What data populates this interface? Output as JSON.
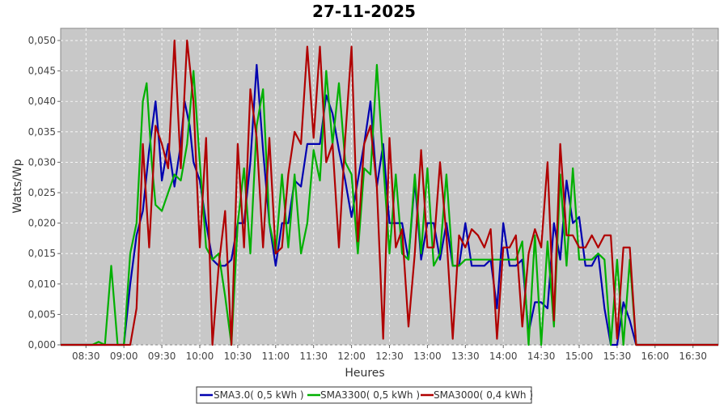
{
  "chart_data": {
    "type": "line",
    "title": "27-11-2025",
    "xlabel": "Heures",
    "ylabel": "Watts/Wp",
    "x_ticks": [
      "08:30",
      "09:00",
      "09:30",
      "10:00",
      "10:30",
      "11:00",
      "11:30",
      "12:00",
      "12:30",
      "13:00",
      "13:30",
      "14:00",
      "14:30",
      "15:00",
      "15:30",
      "16:00",
      "16:30"
    ],
    "y_ticks": [
      "0,000",
      "0,005",
      "0,010",
      "0,015",
      "0,020",
      "0,025",
      "0,030",
      "0,035",
      "0,040",
      "0,045",
      "0,050"
    ],
    "xlim": [
      "08:10",
      "16:50"
    ],
    "ylim": [
      0,
      0.052
    ],
    "grid": true,
    "legend_position": "bottom-center",
    "colors": {
      "plot_background": "#c8c8c8",
      "grid": "#ffffff"
    },
    "series": [
      {
        "name": "SMA3.0( 0,5 kWh )",
        "color": "#0000b0",
        "points": [
          [
            "08:10",
            0.0
          ],
          [
            "08:50",
            0.0
          ],
          [
            "09:00",
            0.0
          ],
          [
            "09:05",
            0.01
          ],
          [
            "09:10",
            0.018
          ],
          [
            "09:15",
            0.022
          ],
          [
            "09:20",
            0.032
          ],
          [
            "09:25",
            0.04
          ],
          [
            "09:28",
            0.033
          ],
          [
            "09:30",
            0.027
          ],
          [
            "09:35",
            0.033
          ],
          [
            "09:40",
            0.026
          ],
          [
            "09:45",
            0.033
          ],
          [
            "09:48",
            0.04
          ],
          [
            "09:52",
            0.036
          ],
          [
            "09:55",
            0.03
          ],
          [
            "10:00",
            0.027
          ],
          [
            "10:05",
            0.02
          ],
          [
            "10:10",
            0.014
          ],
          [
            "10:15",
            0.013
          ],
          [
            "10:20",
            0.013
          ],
          [
            "10:25",
            0.014
          ],
          [
            "10:30",
            0.02
          ],
          [
            "10:35",
            0.02
          ],
          [
            "10:40",
            0.03
          ],
          [
            "10:45",
            0.046
          ],
          [
            "10:50",
            0.032
          ],
          [
            "10:55",
            0.02
          ],
          [
            "11:00",
            0.013
          ],
          [
            "11:05",
            0.02
          ],
          [
            "11:10",
            0.02
          ],
          [
            "11:15",
            0.027
          ],
          [
            "11:20",
            0.026
          ],
          [
            "11:25",
            0.033
          ],
          [
            "11:30",
            0.033
          ],
          [
            "11:35",
            0.033
          ],
          [
            "11:40",
            0.041
          ],
          [
            "11:45",
            0.038
          ],
          [
            "11:50",
            0.032
          ],
          [
            "11:55",
            0.027
          ],
          [
            "12:00",
            0.021
          ],
          [
            "12:05",
            0.027
          ],
          [
            "12:10",
            0.033
          ],
          [
            "12:15",
            0.04
          ],
          [
            "12:20",
            0.026
          ],
          [
            "12:25",
            0.033
          ],
          [
            "12:30",
            0.02
          ],
          [
            "12:35",
            0.02
          ],
          [
            "12:40",
            0.02
          ],
          [
            "12:45",
            0.014
          ],
          [
            "12:50",
            0.027
          ],
          [
            "12:55",
            0.014
          ],
          [
            "13:00",
            0.02
          ],
          [
            "13:05",
            0.02
          ],
          [
            "13:10",
            0.014
          ],
          [
            "13:15",
            0.02
          ],
          [
            "13:20",
            0.013
          ],
          [
            "13:25",
            0.013
          ],
          [
            "13:30",
            0.02
          ],
          [
            "13:35",
            0.013
          ],
          [
            "13:40",
            0.013
          ],
          [
            "13:45",
            0.013
          ],
          [
            "13:50",
            0.014
          ],
          [
            "13:55",
            0.006
          ],
          [
            "14:00",
            0.02
          ],
          [
            "14:05",
            0.013
          ],
          [
            "14:10",
            0.013
          ],
          [
            "14:15",
            0.014
          ],
          [
            "14:20",
            0.002
          ],
          [
            "14:25",
            0.007
          ],
          [
            "14:30",
            0.007
          ],
          [
            "14:35",
            0.006
          ],
          [
            "14:40",
            0.02
          ],
          [
            "14:45",
            0.014
          ],
          [
            "14:50",
            0.027
          ],
          [
            "14:55",
            0.02
          ],
          [
            "15:00",
            0.021
          ],
          [
            "15:05",
            0.013
          ],
          [
            "15:10",
            0.013
          ],
          [
            "15:15",
            0.015
          ],
          [
            "15:20",
            0.006
          ],
          [
            "15:25",
            0.0
          ],
          [
            "15:30",
            0.0
          ],
          [
            "15:35",
            0.007
          ],
          [
            "15:40",
            0.004
          ],
          [
            "15:45",
            0.0
          ],
          [
            "16:50",
            0.0
          ]
        ]
      },
      {
        "name": "SMA3300( 0,5 kWh )",
        "color": "#00b000",
        "points": [
          [
            "08:10",
            0.0
          ],
          [
            "08:35",
            0.0
          ],
          [
            "08:40",
            0.0005
          ],
          [
            "08:45",
            0.0
          ],
          [
            "08:50",
            0.013
          ],
          [
            "08:55",
            0.0
          ],
          [
            "09:00",
            0.0
          ],
          [
            "09:05",
            0.015
          ],
          [
            "09:10",
            0.02
          ],
          [
            "09:15",
            0.04
          ],
          [
            "09:18",
            0.043
          ],
          [
            "09:22",
            0.03
          ],
          [
            "09:25",
            0.023
          ],
          [
            "09:30",
            0.022
          ],
          [
            "09:35",
            0.025
          ],
          [
            "09:40",
            0.028
          ],
          [
            "09:45",
            0.027
          ],
          [
            "09:50",
            0.033
          ],
          [
            "09:55",
            0.045
          ],
          [
            "10:00",
            0.03
          ],
          [
            "10:05",
            0.016
          ],
          [
            "10:10",
            0.014
          ],
          [
            "10:15",
            0.015
          ],
          [
            "10:20",
            0.008
          ],
          [
            "10:25",
            0.0
          ],
          [
            "10:30",
            0.02
          ],
          [
            "10:35",
            0.029
          ],
          [
            "10:40",
            0.015
          ],
          [
            "10:45",
            0.036
          ],
          [
            "10:50",
            0.042
          ],
          [
            "10:55",
            0.02
          ],
          [
            "11:00",
            0.015
          ],
          [
            "11:05",
            0.028
          ],
          [
            "11:10",
            0.016
          ],
          [
            "11:15",
            0.028
          ],
          [
            "11:20",
            0.015
          ],
          [
            "11:25",
            0.02
          ],
          [
            "11:30",
            0.032
          ],
          [
            "11:35",
            0.027
          ],
          [
            "11:40",
            0.045
          ],
          [
            "11:45",
            0.033
          ],
          [
            "11:50",
            0.043
          ],
          [
            "11:55",
            0.03
          ],
          [
            "12:00",
            0.028
          ],
          [
            "12:05",
            0.015
          ],
          [
            "12:10",
            0.029
          ],
          [
            "12:15",
            0.028
          ],
          [
            "12:20",
            0.046
          ],
          [
            "12:25",
            0.03
          ],
          [
            "12:30",
            0.015
          ],
          [
            "12:35",
            0.028
          ],
          [
            "12:40",
            0.015
          ],
          [
            "12:45",
            0.014
          ],
          [
            "12:50",
            0.028
          ],
          [
            "12:55",
            0.015
          ],
          [
            "13:00",
            0.029
          ],
          [
            "13:05",
            0.013
          ],
          [
            "13:10",
            0.015
          ],
          [
            "13:15",
            0.028
          ],
          [
            "13:20",
            0.013
          ],
          [
            "13:25",
            0.013
          ],
          [
            "13:30",
            0.014
          ],
          [
            "13:35",
            0.014
          ],
          [
            "13:40",
            0.014
          ],
          [
            "13:45",
            0.014
          ],
          [
            "13:50",
            0.014
          ],
          [
            "13:55",
            0.014
          ],
          [
            "14:00",
            0.014
          ],
          [
            "14:05",
            0.014
          ],
          [
            "14:10",
            0.014
          ],
          [
            "14:15",
            0.017
          ],
          [
            "14:20",
            0.0
          ],
          [
            "14:25",
            0.018
          ],
          [
            "14:30",
            0.0
          ],
          [
            "14:35",
            0.017
          ],
          [
            "14:40",
            0.003
          ],
          [
            "14:45",
            0.028
          ],
          [
            "14:50",
            0.013
          ],
          [
            "14:55",
            0.029
          ],
          [
            "15:00",
            0.014
          ],
          [
            "15:05",
            0.014
          ],
          [
            "15:10",
            0.014
          ],
          [
            "15:15",
            0.015
          ],
          [
            "15:20",
            0.014
          ],
          [
            "15:25",
            0.0
          ],
          [
            "15:30",
            0.014
          ],
          [
            "15:35",
            0.0
          ],
          [
            "15:40",
            0.014
          ],
          [
            "15:45",
            0.0
          ],
          [
            "16:50",
            0.0
          ]
        ]
      },
      {
        "name": "SMA3000( 0,4 kWh )",
        "color": "#b00000",
        "points": [
          [
            "08:10",
            0.0
          ],
          [
            "09:00",
            0.0
          ],
          [
            "09:05",
            0.0
          ],
          [
            "09:10",
            0.006
          ],
          [
            "09:15",
            0.033
          ],
          [
            "09:20",
            0.016
          ],
          [
            "09:25",
            0.036
          ],
          [
            "09:30",
            0.033
          ],
          [
            "09:35",
            0.029
          ],
          [
            "09:40",
            0.05
          ],
          [
            "09:45",
            0.029
          ],
          [
            "09:50",
            0.05
          ],
          [
            "09:55",
            0.04
          ],
          [
            "10:00",
            0.016
          ],
          [
            "10:05",
            0.034
          ],
          [
            "10:10",
            0.0
          ],
          [
            "10:15",
            0.013
          ],
          [
            "10:20",
            0.022
          ],
          [
            "10:25",
            0.0
          ],
          [
            "10:30",
            0.033
          ],
          [
            "10:35",
            0.016
          ],
          [
            "10:40",
            0.042
          ],
          [
            "10:45",
            0.034
          ],
          [
            "10:50",
            0.016
          ],
          [
            "10:55",
            0.034
          ],
          [
            "11:00",
            0.015
          ],
          [
            "11:05",
            0.016
          ],
          [
            "11:10",
            0.028
          ],
          [
            "11:15",
            0.035
          ],
          [
            "11:20",
            0.033
          ],
          [
            "11:25",
            0.049
          ],
          [
            "11:30",
            0.034
          ],
          [
            "11:35",
            0.049
          ],
          [
            "11:40",
            0.03
          ],
          [
            "11:45",
            0.033
          ],
          [
            "11:50",
            0.016
          ],
          [
            "11:55",
            0.034
          ],
          [
            "12:00",
            0.049
          ],
          [
            "12:05",
            0.017
          ],
          [
            "12:10",
            0.033
          ],
          [
            "12:15",
            0.036
          ],
          [
            "12:20",
            0.026
          ],
          [
            "12:25",
            0.001
          ],
          [
            "12:30",
            0.034
          ],
          [
            "12:35",
            0.016
          ],
          [
            "12:40",
            0.019
          ],
          [
            "12:45",
            0.003
          ],
          [
            "12:50",
            0.015
          ],
          [
            "12:55",
            0.032
          ],
          [
            "13:00",
            0.016
          ],
          [
            "13:05",
            0.016
          ],
          [
            "13:10",
            0.03
          ],
          [
            "13:15",
            0.018
          ],
          [
            "13:20",
            0.001
          ],
          [
            "13:25",
            0.018
          ],
          [
            "13:30",
            0.016
          ],
          [
            "13:35",
            0.019
          ],
          [
            "13:40",
            0.018
          ],
          [
            "13:45",
            0.016
          ],
          [
            "13:50",
            0.019
          ],
          [
            "13:55",
            0.001
          ],
          [
            "14:00",
            0.016
          ],
          [
            "14:05",
            0.016
          ],
          [
            "14:10",
            0.018
          ],
          [
            "14:15",
            0.003
          ],
          [
            "14:20",
            0.015
          ],
          [
            "14:25",
            0.019
          ],
          [
            "14:30",
            0.016
          ],
          [
            "14:35",
            0.03
          ],
          [
            "14:40",
            0.004
          ],
          [
            "14:45",
            0.033
          ],
          [
            "14:50",
            0.018
          ],
          [
            "14:55",
            0.018
          ],
          [
            "15:00",
            0.016
          ],
          [
            "15:05",
            0.016
          ],
          [
            "15:10",
            0.018
          ],
          [
            "15:15",
            0.016
          ],
          [
            "15:20",
            0.018
          ],
          [
            "15:25",
            0.018
          ],
          [
            "15:30",
            0.001
          ],
          [
            "15:35",
            0.016
          ],
          [
            "15:40",
            0.016
          ],
          [
            "15:45",
            0.0
          ],
          [
            "16:50",
            0.0
          ]
        ]
      }
    ]
  }
}
